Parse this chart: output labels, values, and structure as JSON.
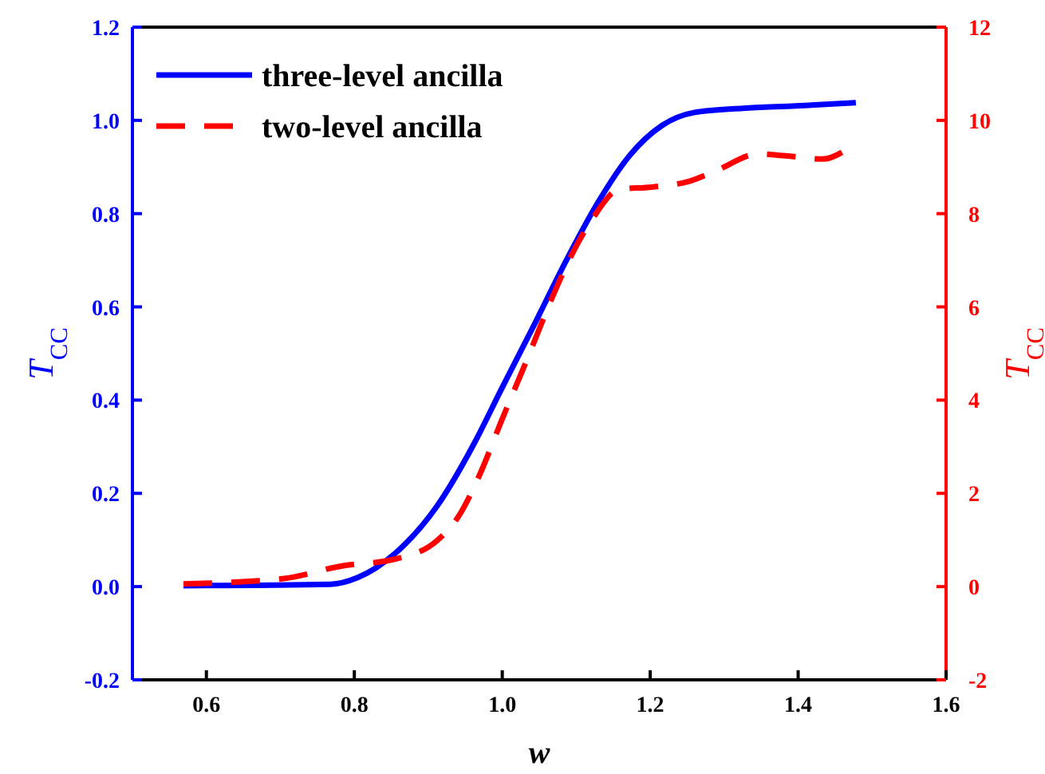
{
  "chart_data": {
    "type": "line",
    "xlabel": "w",
    "ylabel": "T$_{CC}$",
    "y2label": "T$_{CC}$",
    "xlim": [
      0.5,
      1.6
    ],
    "xticks": [
      {
        "value": 0.6,
        "label": "0.6"
      },
      {
        "value": 0.8,
        "label": "0.8"
      },
      {
        "value": 1.0,
        "label": "1.0"
      },
      {
        "value": 1.2,
        "label": "1.2"
      },
      {
        "value": 1.4,
        "label": "1.4"
      },
      {
        "value": 1.6,
        "label": "1.6"
      }
    ],
    "ylim": [
      -0.2,
      1.2
    ],
    "yticks": [
      {
        "value": -0.2,
        "label": "-0.2"
      },
      {
        "value": 0,
        "label": "0.0"
      },
      {
        "value": 0.2,
        "label": "0.2"
      },
      {
        "value": 0.4,
        "label": "0.4"
      },
      {
        "value": 0.6,
        "label": "0.6"
      },
      {
        "value": 0.8,
        "label": "0.8"
      },
      {
        "value": 1.0,
        "label": "1.0"
      },
      {
        "value": 1.2,
        "label": "1.2"
      }
    ],
    "y2lim": [
      -2,
      12
    ],
    "y2ticks": [
      -2,
      0,
      2,
      4,
      6,
      8,
      10,
      12
    ],
    "legend": "top left",
    "grid": false,
    "series": [
      {
        "name": "three-level ancilla",
        "color": "#0000ff",
        "line_style": "solid",
        "x": [
          0.569,
          0.768,
          0.804,
          0.855,
          0.912,
          0.963,
          0.999,
          1.043,
          1.086,
          1.129,
          1.173,
          1.216,
          1.26,
          1.325,
          1.397,
          1.478
        ],
        "values": [
          0.002,
          0.005,
          0.019,
          0.071,
          0.173,
          0.31,
          0.424,
          0.561,
          0.698,
          0.823,
          0.926,
          0.989,
          1.017,
          1.026,
          1.031,
          1.038
        ]
      },
      {
        "name": "two-level ancilla",
        "color": "#ff0000",
        "line_style": "dashed",
        "axis": "y2",
        "x": [
          0.569,
          0.703,
          0.782,
          0.855,
          0.912,
          0.941,
          0.97,
          0.999,
          1.035,
          1.064,
          1.093,
          1.122,
          1.158,
          1.202,
          1.252,
          1.289,
          1.346,
          1.383,
          1.433,
          1.469
        ],
        "values": [
          0.06,
          0.17,
          0.44,
          0.59,
          0.99,
          1.51,
          2.42,
          3.56,
          4.93,
          6.07,
          7.09,
          7.89,
          8.52,
          8.57,
          8.69,
          8.92,
          9.28,
          9.24,
          9.17,
          9.41
        ]
      }
    ]
  }
}
